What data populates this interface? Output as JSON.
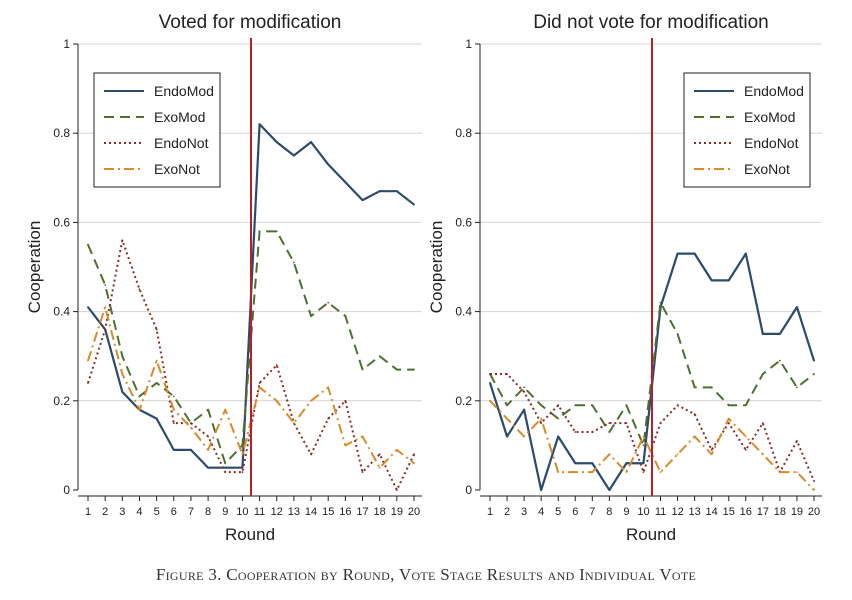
{
  "caption": "Figure 3. Cooperation by Round, Vote Stage Results and Individual Vote",
  "chart_data": [
    {
      "type": "line",
      "title": "Voted for modification",
      "xlabel": "Round",
      "ylabel": "Cooperation",
      "x": [
        1,
        2,
        3,
        4,
        5,
        6,
        7,
        8,
        9,
        10,
        11,
        12,
        13,
        14,
        15,
        16,
        17,
        18,
        19,
        20
      ],
      "ylim": [
        0,
        1
      ],
      "yticks": [
        "0",
        "0.2",
        "0.4",
        "0.6",
        "0.8",
        "1"
      ],
      "vline": 10.5,
      "legend_position": "top-left",
      "series": [
        {
          "name": "EndoMod",
          "color": "#2b4a6f",
          "dash": "solid",
          "values": [
            0.41,
            0.36,
            0.22,
            0.18,
            0.16,
            0.09,
            0.09,
            0.05,
            0.05,
            0.05,
            0.82,
            0.78,
            0.75,
            0.78,
            0.73,
            0.69,
            0.65,
            0.67,
            0.67,
            0.64
          ]
        },
        {
          "name": "ExoMod",
          "color": "#4f6f2f",
          "dash": "dashed",
          "values": [
            0.55,
            0.46,
            0.3,
            0.21,
            0.24,
            0.21,
            0.15,
            0.18,
            0.06,
            0.1,
            0.58,
            0.58,
            0.51,
            0.39,
            0.42,
            0.39,
            0.27,
            0.3,
            0.27,
            0.27
          ]
        },
        {
          "name": "EndoNot",
          "color": "#8b2b2b",
          "dash": "dotted",
          "values": [
            0.24,
            0.36,
            0.56,
            0.45,
            0.36,
            0.15,
            0.15,
            0.12,
            0.04,
            0.04,
            0.24,
            0.28,
            0.15,
            0.08,
            0.16,
            0.2,
            0.04,
            0.08,
            0.0,
            0.08
          ]
        },
        {
          "name": "ExoNot",
          "color": "#d98a2b",
          "dash": "dashdot",
          "values": [
            0.29,
            0.41,
            0.26,
            0.18,
            0.29,
            0.18,
            0.14,
            0.09,
            0.18,
            0.08,
            0.23,
            0.2,
            0.15,
            0.2,
            0.23,
            0.1,
            0.12,
            0.05,
            0.09,
            0.06
          ]
        }
      ]
    },
    {
      "type": "line",
      "title": "Did not vote for modification",
      "xlabel": "Round",
      "ylabel": "Cooperation",
      "x": [
        1,
        2,
        3,
        4,
        5,
        6,
        7,
        8,
        9,
        10,
        11,
        12,
        13,
        14,
        15,
        16,
        17,
        18,
        19,
        20
      ],
      "ylim": [
        0,
        1
      ],
      "yticks": [
        "0",
        "0.2",
        "0.4",
        "0.6",
        "0.8",
        "1"
      ],
      "vline": 10.5,
      "legend_position": "top-right",
      "series": [
        {
          "name": "EndoMod",
          "color": "#2b4a6f",
          "dash": "solid",
          "values": [
            0.24,
            0.12,
            0.18,
            0.0,
            0.12,
            0.06,
            0.06,
            0.0,
            0.06,
            0.06,
            0.41,
            0.53,
            0.53,
            0.47,
            0.47,
            0.53,
            0.35,
            0.35,
            0.41,
            0.29
          ]
        },
        {
          "name": "ExoMod",
          "color": "#4f6f2f",
          "dash": "dashed",
          "values": [
            0.26,
            0.19,
            0.23,
            0.19,
            0.16,
            0.19,
            0.19,
            0.13,
            0.19,
            0.1,
            0.42,
            0.35,
            0.23,
            0.23,
            0.19,
            0.19,
            0.26,
            0.29,
            0.23,
            0.26
          ]
        },
        {
          "name": "EndoNot",
          "color": "#8b2b2b",
          "dash": "dotted",
          "values": [
            0.26,
            0.26,
            0.22,
            0.15,
            0.19,
            0.13,
            0.13,
            0.15,
            0.15,
            0.04,
            0.15,
            0.19,
            0.17,
            0.09,
            0.15,
            0.09,
            0.15,
            0.04,
            0.11,
            0.02
          ]
        },
        {
          "name": "ExoNot",
          "color": "#d98a2b",
          "dash": "dashdot",
          "values": [
            0.2,
            0.16,
            0.12,
            0.16,
            0.04,
            0.04,
            0.04,
            0.08,
            0.04,
            0.12,
            0.04,
            0.08,
            0.12,
            0.08,
            0.16,
            0.12,
            0.08,
            0.04,
            0.04,
            0.0
          ]
        }
      ]
    }
  ]
}
